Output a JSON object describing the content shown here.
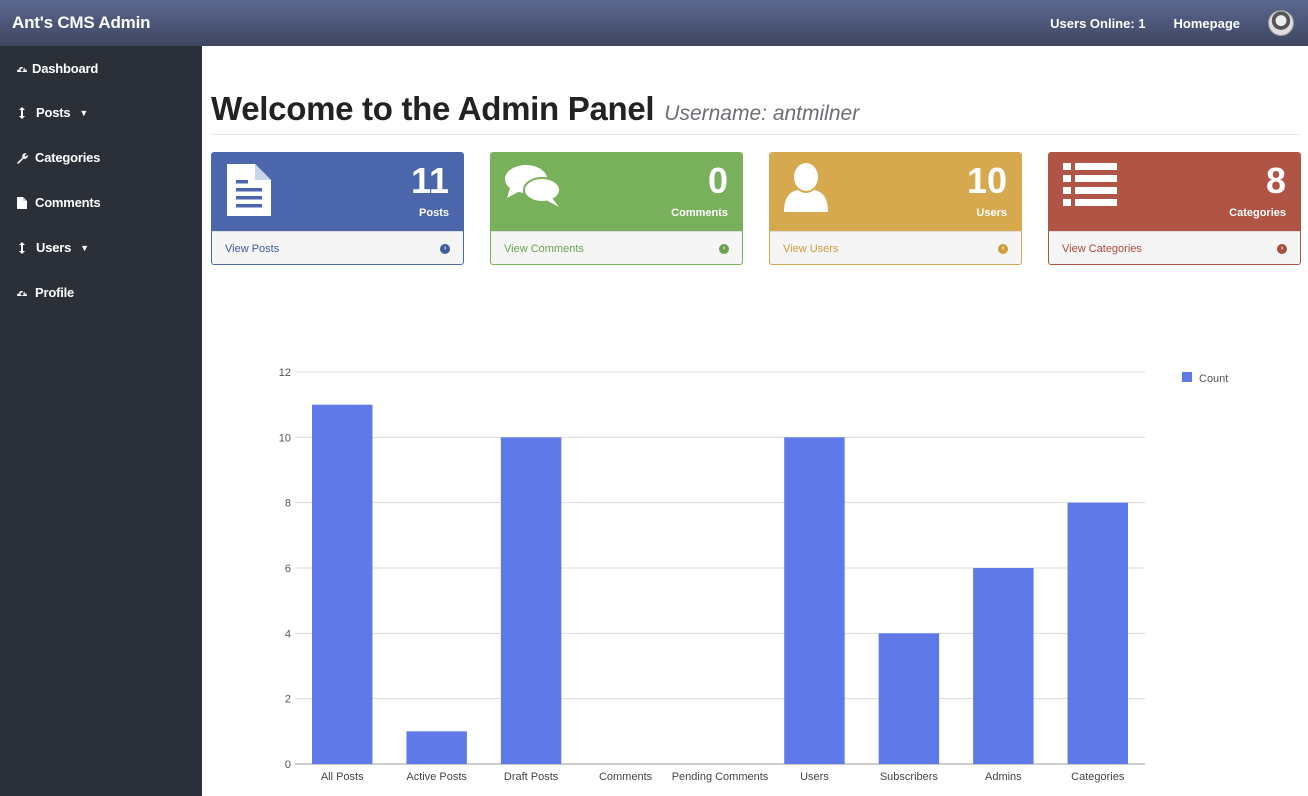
{
  "brand": "Ant's CMS Admin",
  "topnav": {
    "users_online": "Users Online: 1",
    "homepage": "Homepage"
  },
  "sidebar": {
    "items": [
      {
        "label": "Dashboard",
        "icon": "dashboard-icon"
      },
      {
        "label": "Posts",
        "icon": "sort-arrows-icon",
        "dropdown": true
      },
      {
        "label": "Categories",
        "icon": "wrench-icon"
      },
      {
        "label": "Comments",
        "icon": "file-icon"
      },
      {
        "label": "Users",
        "icon": "sort-arrows-icon",
        "dropdown": true
      },
      {
        "label": "Profile",
        "icon": "dashboard-icon"
      }
    ]
  },
  "header": {
    "title": "Welcome to the Admin Panel",
    "subtitle": "Username: antmilner"
  },
  "panels": [
    {
      "count": "11",
      "label": "Posts",
      "link": "View Posts",
      "icon": "document-icon",
      "color": "#4b66ab",
      "link_color": "#3f5a9e"
    },
    {
      "count": "0",
      "label": "Comments",
      "link": "View Comments",
      "icon": "comments-icon",
      "color": "#78b05c",
      "link_color": "#6aa34e"
    },
    {
      "count": "10",
      "label": "Users",
      "link": "View Users",
      "icon": "user-icon",
      "color": "#d7a94e",
      "link_color": "#cf9d3c"
    },
    {
      "count": "8",
      "label": "Categories",
      "link": "View Categories",
      "icon": "list-icon",
      "color": "#b05446",
      "link_color": "#a64b3d"
    }
  ],
  "chart_data": {
    "type": "bar",
    "categories": [
      "All Posts",
      "Active Posts",
      "Draft Posts",
      "Comments",
      "Pending Comments",
      "Users",
      "Subscribers",
      "Admins",
      "Categories"
    ],
    "series": [
      {
        "name": "Count",
        "values": [
          11,
          1,
          10,
          0,
          0,
          10,
          4,
          6,
          8
        ],
        "color": "#6079e8"
      }
    ],
    "ylim": [
      0,
      12
    ],
    "yticks": [
      0,
      2,
      4,
      6,
      8,
      10,
      12
    ],
    "grid": true,
    "legend": "right"
  }
}
